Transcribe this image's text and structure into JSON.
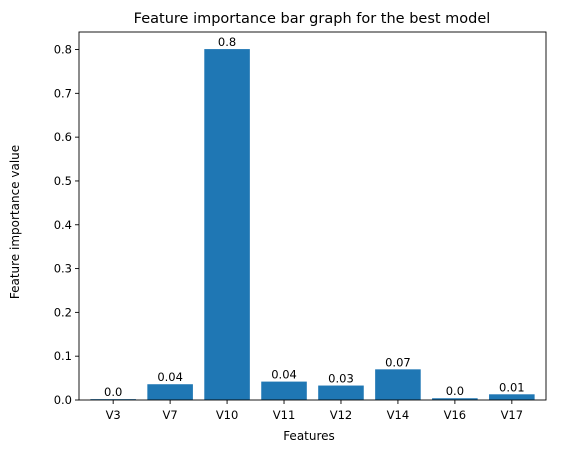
{
  "colors": {
    "bar": "#1f77b4",
    "axis": "#000000",
    "background": "#ffffff"
  },
  "chart_data": {
    "type": "bar",
    "title": "Feature importance bar graph for the best model",
    "xlabel": "Features",
    "ylabel": "Feature importance value",
    "categories": [
      "V3",
      "V7",
      "V10",
      "V11",
      "V12",
      "V14",
      "V16",
      "V17"
    ],
    "values": [
      0.002,
      0.036,
      0.801,
      0.042,
      0.033,
      0.07,
      0.004,
      0.013
    ],
    "data_labels": [
      "0.0",
      "0.04",
      "0.8",
      "0.04",
      "0.03",
      "0.07",
      "0.0",
      "0.01"
    ],
    "ylim": [
      0,
      0.84
    ],
    "yticks": [
      0.0,
      0.1,
      0.2,
      0.3,
      0.4,
      0.5,
      0.6,
      0.7,
      0.8
    ],
    "ytick_labels": [
      "0.0",
      "0.1",
      "0.2",
      "0.3",
      "0.4",
      "0.5",
      "0.6",
      "0.7",
      "0.8"
    ],
    "grid": false,
    "legend": "none"
  }
}
